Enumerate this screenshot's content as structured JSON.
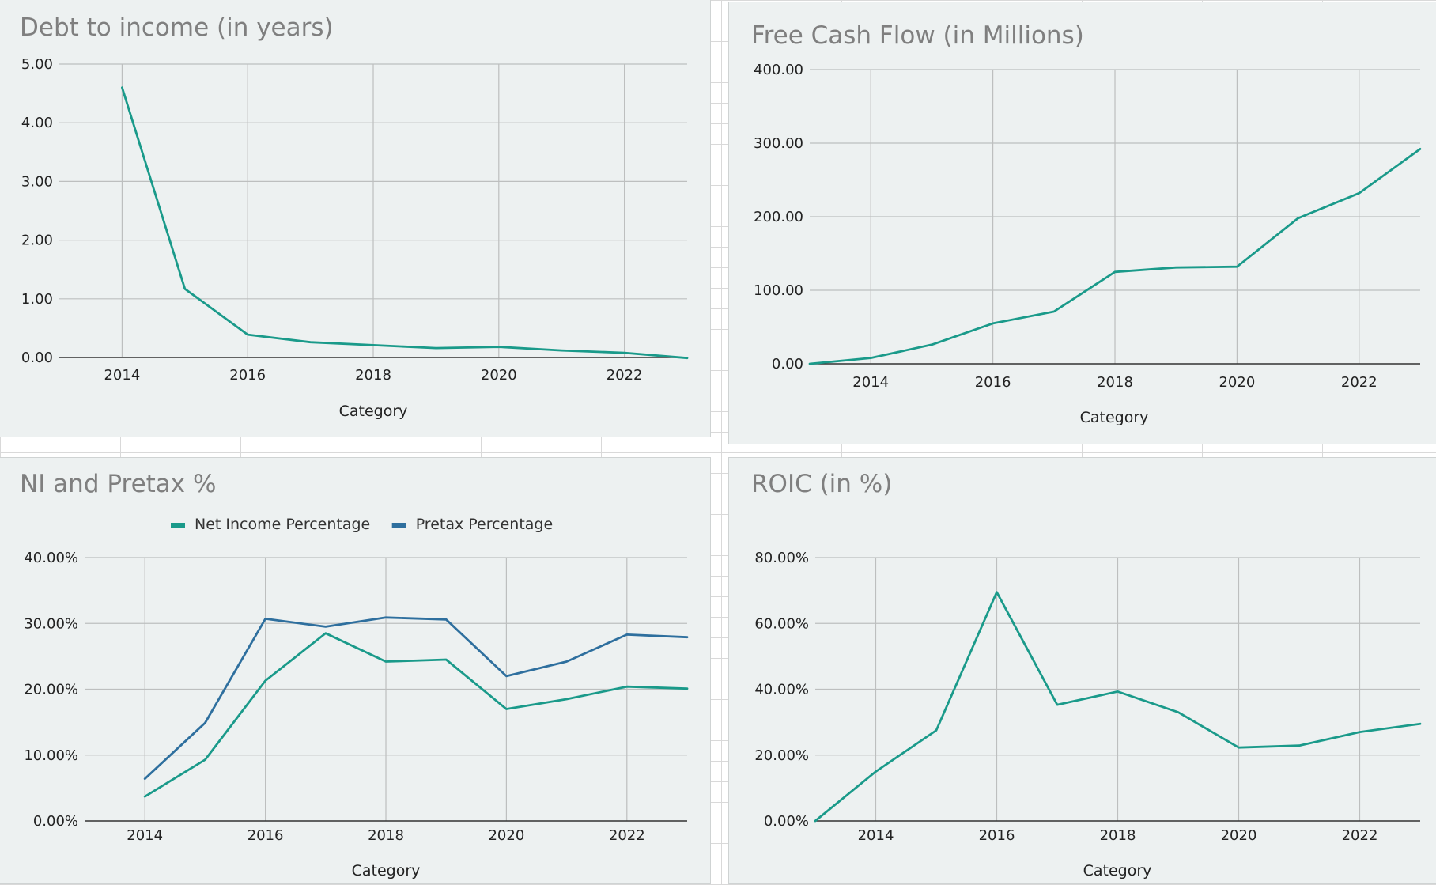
{
  "chart_data": [
    {
      "type": "line",
      "title": "Debt to income (in years)",
      "xlabel": "Category",
      "ylabel": "",
      "x": [
        2014,
        2015,
        2016,
        2017,
        2018,
        2019,
        2020,
        2021,
        2022,
        2023
      ],
      "x_tick_labels": [
        "2014",
        "2016",
        "2018",
        "2020",
        "2022"
      ],
      "y_tick_labels": [
        "0.00",
        "1.00",
        "2.00",
        "3.00",
        "4.00",
        "5.00"
      ],
      "ylim": [
        0,
        5
      ],
      "grid": true,
      "series": [
        {
          "name": "",
          "color": "#1a9a8a",
          "values": [
            4.6,
            1.17,
            0.39,
            0.26,
            0.21,
            0.16,
            0.18,
            0.12,
            0.08,
            -0.01
          ]
        }
      ]
    },
    {
      "type": "line",
      "title": "Free Cash Flow (in Millions)",
      "xlabel": "Category",
      "ylabel": "",
      "x": [
        2013,
        2014,
        2015,
        2016,
        2017,
        2018,
        2019,
        2020,
        2021,
        2022,
        2023
      ],
      "x_tick_labels": [
        "2014",
        "2016",
        "2018",
        "2020",
        "2022"
      ],
      "y_tick_labels": [
        "0.00",
        "100.00",
        "200.00",
        "300.00",
        "400.00"
      ],
      "ylim": [
        0,
        400
      ],
      "grid": true,
      "series": [
        {
          "name": "",
          "color": "#1a9a8a",
          "values": [
            0,
            8,
            26,
            55,
            71,
            125,
            131,
            132,
            198,
            232,
            292
          ]
        }
      ]
    },
    {
      "type": "line",
      "title": "NI and Pretax %",
      "xlabel": "Category",
      "ylabel": "",
      "x": [
        2014,
        2015,
        2016,
        2017,
        2018,
        2019,
        2020,
        2021,
        2022,
        2023
      ],
      "x_tick_labels": [
        "2014",
        "2016",
        "2018",
        "2020",
        "2022"
      ],
      "y_tick_labels": [
        "0.00%",
        "10.00%",
        "20.00%",
        "30.00%",
        "40.00%"
      ],
      "ylim": [
        0,
        40
      ],
      "grid": true,
      "legend": "top",
      "series": [
        {
          "name": "Net Income Percentage",
          "color": "#1a9a8a",
          "values": [
            3.7,
            9.3,
            21.3,
            28.5,
            24.2,
            24.5,
            17.0,
            18.5,
            20.4,
            20.1
          ]
        },
        {
          "name": "Pretax Percentage",
          "color": "#2e6f9e",
          "values": [
            6.4,
            14.9,
            30.7,
            29.5,
            30.9,
            30.6,
            22.0,
            24.2,
            28.3,
            27.9
          ]
        }
      ]
    },
    {
      "type": "line",
      "title": "ROIC (in %)",
      "xlabel": "Category",
      "ylabel": "",
      "x": [
        2013,
        2014,
        2015,
        2016,
        2017,
        2018,
        2019,
        2020,
        2021,
        2022,
        2023
      ],
      "x_tick_labels": [
        "2014",
        "2016",
        "2018",
        "2020",
        "2022"
      ],
      "y_tick_labels": [
        "0.00%",
        "20.00%",
        "40.00%",
        "60.00%",
        "80.00%"
      ],
      "ylim": [
        0,
        80
      ],
      "grid": true,
      "series": [
        {
          "name": "",
          "color": "#1a9a8a",
          "values": [
            0,
            15,
            27.5,
            69.5,
            35.3,
            39.3,
            33.0,
            22.3,
            22.9,
            27.0,
            29.5
          ]
        }
      ]
    }
  ]
}
